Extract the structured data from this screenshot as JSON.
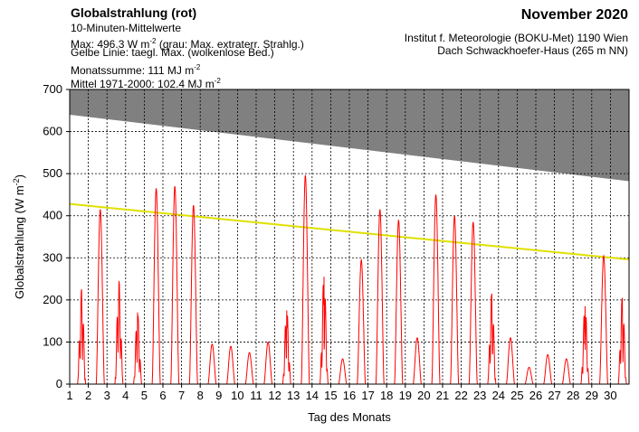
{
  "header": {
    "title": "Globalstrahlung (rot)",
    "line2": "10-Minuten-Mittelwerte",
    "line3_prefix": "Max:  496.3 W m",
    "line3_sup": "-2",
    "line3_suffix": "  (grau: Max. extraterr. Strahlg.)",
    "line4": "Gelbe Linie: taegl. Max. (wolkenlose Bed.)",
    "line5_prefix": "Monatssumme:  111 MJ m",
    "line5_sup": "-2",
    "line6_prefix": "Mittel 1971-2000:  102.4 MJ m",
    "line6_sup": "-2",
    "month": "November 2020",
    "institute": "Institut f. Meteorologie (BOKU-Met) 1190 Wien",
    "location": "Dach Schwackhoefer-Haus (265 m NN)"
  },
  "chart_data": {
    "type": "line",
    "xlabel": "Tag des Monats",
    "ylabel": "Globalstrahlung (W m",
    "ylabel_sup": "-2",
    "ylabel_close": ")",
    "ylim": [
      0,
      700
    ],
    "xlim": [
      1,
      31
    ],
    "yticks": [
      "0",
      "100",
      "200",
      "300",
      "400",
      "500",
      "600",
      "700"
    ],
    "xticks": [
      "1",
      "2",
      "3",
      "4",
      "5",
      "6",
      "7",
      "8",
      "9",
      "10",
      "11",
      "12",
      "13",
      "14",
      "15",
      "16",
      "17",
      "18",
      "19",
      "20",
      "21",
      "22",
      "23",
      "24",
      "25",
      "26",
      "27",
      "28",
      "29",
      "30"
    ],
    "grid": true,
    "colors": {
      "global": "#ff0000",
      "clear_sky": "#e0e000",
      "extraterrestrial": "#808080"
    },
    "extraterrestrial_max": {
      "x": [
        1,
        31
      ],
      "y": [
        640,
        482
      ]
    },
    "clear_sky_max": {
      "x": [
        1,
        31
      ],
      "y": [
        428,
        296
      ]
    },
    "daily_max": {
      "day": [
        1,
        2,
        3,
        4,
        5,
        6,
        7,
        8,
        9,
        10,
        11,
        12,
        13,
        14,
        15,
        16,
        17,
        18,
        19,
        20,
        21,
        22,
        23,
        24,
        25,
        26,
        27,
        28,
        29,
        30
      ],
      "value": [
        225,
        415,
        245,
        170,
        465,
        470,
        425,
        95,
        90,
        75,
        100,
        175,
        496,
        255,
        60,
        295,
        415,
        390,
        110,
        450,
        400,
        385,
        215,
        110,
        40,
        70,
        60,
        185,
        305,
        205
      ]
    }
  }
}
